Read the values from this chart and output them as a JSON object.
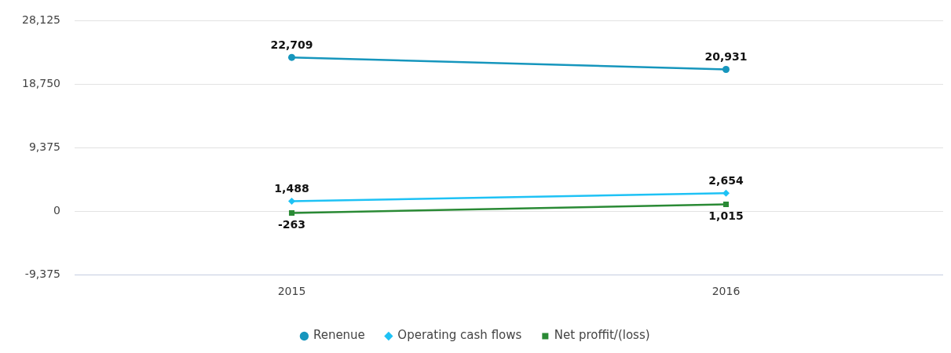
{
  "chart_data": {
    "type": "line",
    "categories": [
      "2015",
      "2016"
    ],
    "series": [
      {
        "name": "Renenue",
        "color": "#1696bd",
        "marker": "circle",
        "values": [
          22709,
          20931
        ],
        "value_labels": [
          "22,709",
          "20,931"
        ]
      },
      {
        "name": "Operating cash flows",
        "color": "#1ec2f5",
        "marker": "diamond",
        "values": [
          1488,
          2654
        ],
        "value_labels": [
          "1,488",
          "2,654"
        ]
      },
      {
        "name": "Net proffit/(loss)",
        "color": "#2a8a35",
        "marker": "square",
        "values": [
          -263,
          1015
        ],
        "value_labels": [
          "-263",
          "1,015"
        ]
      }
    ],
    "ylim": [
      -9375,
      28125
    ],
    "yticks": [
      {
        "value": -9375,
        "label": "-9,375"
      },
      0,
      {
        "value": 9375,
        "label": "9,375"
      },
      {
        "value": 18750,
        "label": "18,750"
      },
      {
        "value": 28125,
        "label": "28,125"
      }
    ],
    "grid": "y",
    "legend": "bottom",
    "line_style": "solid"
  }
}
